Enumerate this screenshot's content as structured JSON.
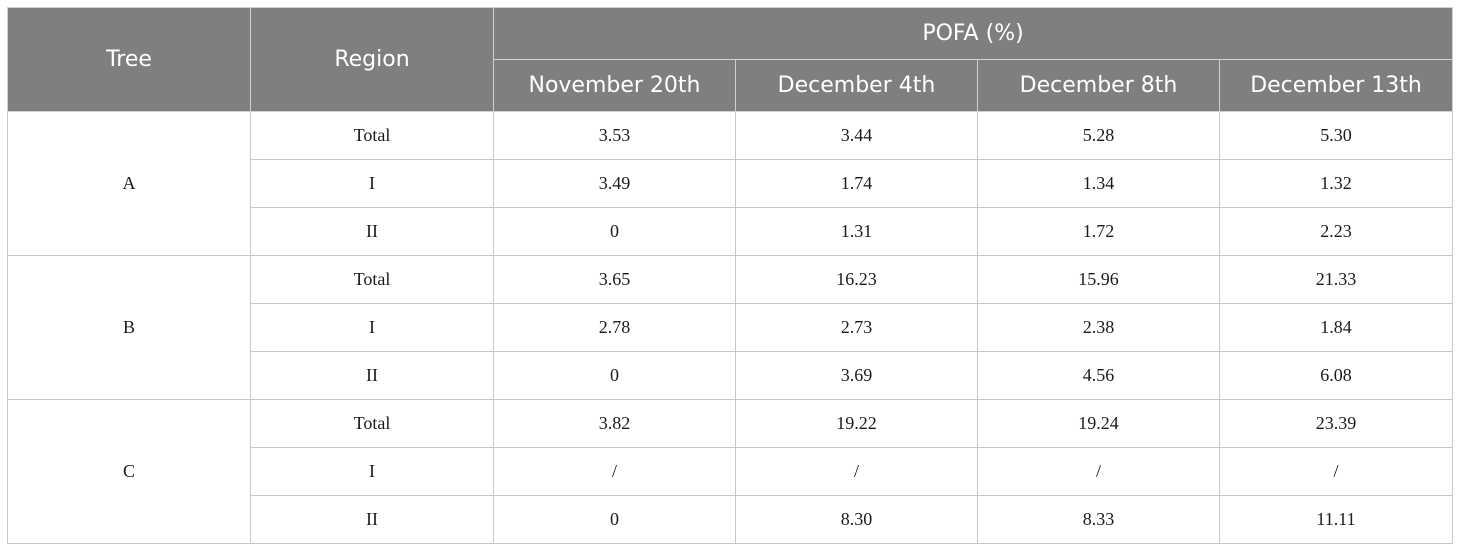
{
  "table": {
    "header": {
      "tree": "Tree",
      "region": "Region",
      "group": "POFA (%)",
      "dates": [
        "November 20th",
        "December 4th",
        "December 8th",
        "December 13th"
      ]
    },
    "groups": [
      {
        "tree": "A",
        "rows": [
          {
            "region": "Total",
            "values": [
              "3.53",
              "3.44",
              "5.28",
              "5.30"
            ]
          },
          {
            "region": "I",
            "values": [
              "3.49",
              "1.74",
              "1.34",
              "1.32"
            ]
          },
          {
            "region": "II",
            "values": [
              "0",
              "1.31",
              "1.72",
              "2.23"
            ]
          }
        ]
      },
      {
        "tree": "B",
        "rows": [
          {
            "region": "Total",
            "values": [
              "3.65",
              "16.23",
              "15.96",
              "21.33"
            ]
          },
          {
            "region": "I",
            "values": [
              "2.78",
              "2.73",
              "2.38",
              "1.84"
            ]
          },
          {
            "region": "II",
            "values": [
              "0",
              "3.69",
              "4.56",
              "6.08"
            ]
          }
        ]
      },
      {
        "tree": "C",
        "rows": [
          {
            "region": "Total",
            "values": [
              "3.82",
              "19.22",
              "19.24",
              "23.39"
            ]
          },
          {
            "region": "I",
            "values": [
              "/",
              "/",
              "/",
              "/"
            ]
          },
          {
            "region": "II",
            "values": [
              "0",
              "8.30",
              "8.33",
              "11.11"
            ]
          }
        ]
      }
    ]
  },
  "colors": {
    "header_bg": "#7f7f7f",
    "header_text": "#ffffff",
    "border": "#c8c8c8"
  }
}
